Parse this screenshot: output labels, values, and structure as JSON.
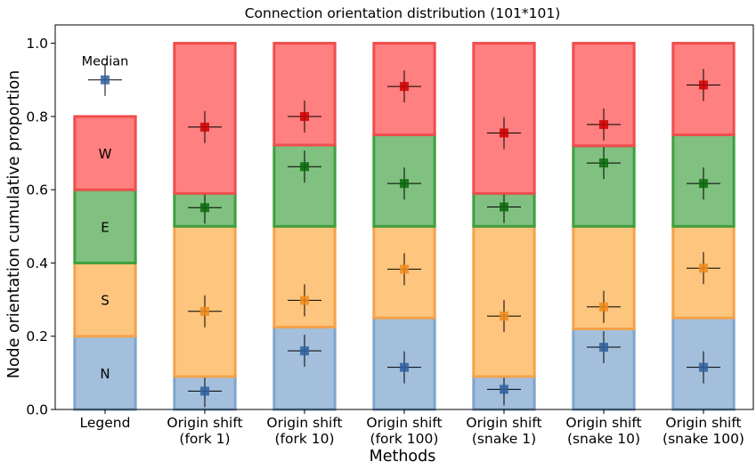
{
  "chart_data": {
    "type": "bar",
    "title": "Connection orientation distribution (101*101)",
    "xlabel": "Methods",
    "ylabel": "Node orientation cumulative proportion",
    "ylim": [
      0,
      1.05
    ],
    "yticks": [
      "0.0",
      "0.2",
      "0.4",
      "0.6",
      "0.8",
      "1.0"
    ],
    "categories": [
      [
        "Legend"
      ],
      [
        "Origin shift",
        "(fork 1)"
      ],
      [
        "Origin shift",
        "(fork 10)"
      ],
      [
        "Origin shift",
        "(fork 100)"
      ],
      [
        "Origin shift",
        "(snake 1)"
      ],
      [
        "Origin shift",
        "(snake 10)"
      ],
      [
        "Origin shift",
        "(snake 100)"
      ]
    ],
    "stack_order": [
      "N",
      "S",
      "E",
      "W"
    ],
    "colors": {
      "N": {
        "fill": "#a3bfdc",
        "edge": "#7fa6cc",
        "marker": "#2f5f9f"
      },
      "S": {
        "fill": "#fec57e",
        "edge": "#f5a24a",
        "marker": "#f08a1c"
      },
      "E": {
        "fill": "#80c080",
        "edge": "#3f9f3f",
        "marker": "#0a6a0a"
      },
      "W": {
        "fill": "#ff8080",
        "edge": "#f04d4d",
        "marker": "#cc0000"
      }
    },
    "legend": {
      "segment_labels": [
        "N",
        "S",
        "E",
        "W"
      ],
      "median_label": "Median",
      "median_y": 0.9
    },
    "series": [
      {
        "name": "N",
        "values": [
          0.2,
          0.09,
          0.225,
          0.25,
          0.09,
          0.22,
          0.25
        ],
        "medians": [
          null,
          0.05,
          0.16,
          0.115,
          0.055,
          0.17,
          0.115
        ]
      },
      {
        "name": "S",
        "values": [
          0.2,
          0.41,
          0.275,
          0.25,
          0.41,
          0.28,
          0.25
        ],
        "medians": [
          null,
          0.268,
          0.298,
          0.383,
          0.255,
          0.28,
          0.386
        ]
      },
      {
        "name": "E",
        "values": [
          0.2,
          0.09,
          0.222,
          0.25,
          0.09,
          0.22,
          0.25
        ],
        "medians": [
          null,
          0.551,
          0.663,
          0.617,
          0.553,
          0.673,
          0.617
        ]
      },
      {
        "name": "W",
        "values": [
          0.2,
          0.41,
          0.278,
          0.25,
          0.41,
          0.28,
          0.25
        ],
        "medians": [
          null,
          0.771,
          0.8,
          0.882,
          0.755,
          0.778,
          0.886
        ]
      }
    ]
  }
}
